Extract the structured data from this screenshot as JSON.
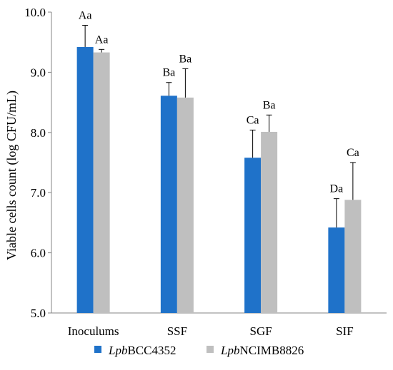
{
  "chart_data": {
    "type": "bar",
    "ylabel": "Viable cells count (log CFU/mL)",
    "ylim": [
      5.0,
      10.0
    ],
    "yticks": [
      "5.0",
      "6.0",
      "7.0",
      "8.0",
      "9.0",
      "10.0"
    ],
    "grid": false,
    "legend_position": "bottom",
    "categories": [
      "Inoculums",
      "SSF",
      "SGF",
      "SIF"
    ],
    "series": [
      {
        "name_prefix": "Lpb",
        "name_suffix": "BCC4352",
        "color": "#1f72c9",
        "values": [
          9.42,
          8.61,
          7.58,
          6.42
        ],
        "errors": [
          0.36,
          0.22,
          0.46,
          0.48
        ],
        "annotations": [
          "Aa",
          "Ba",
          "Ca",
          "Da"
        ]
      },
      {
        "name_prefix": "Lpb",
        "name_suffix": "NCIMB8826",
        "color": "#bfbfbf",
        "values": [
          9.33,
          8.58,
          8.01,
          6.88
        ],
        "errors": [
          0.05,
          0.48,
          0.28,
          0.62
        ],
        "annotations": [
          "Aa",
          "Ba",
          "Ba",
          "Ca"
        ]
      }
    ]
  }
}
